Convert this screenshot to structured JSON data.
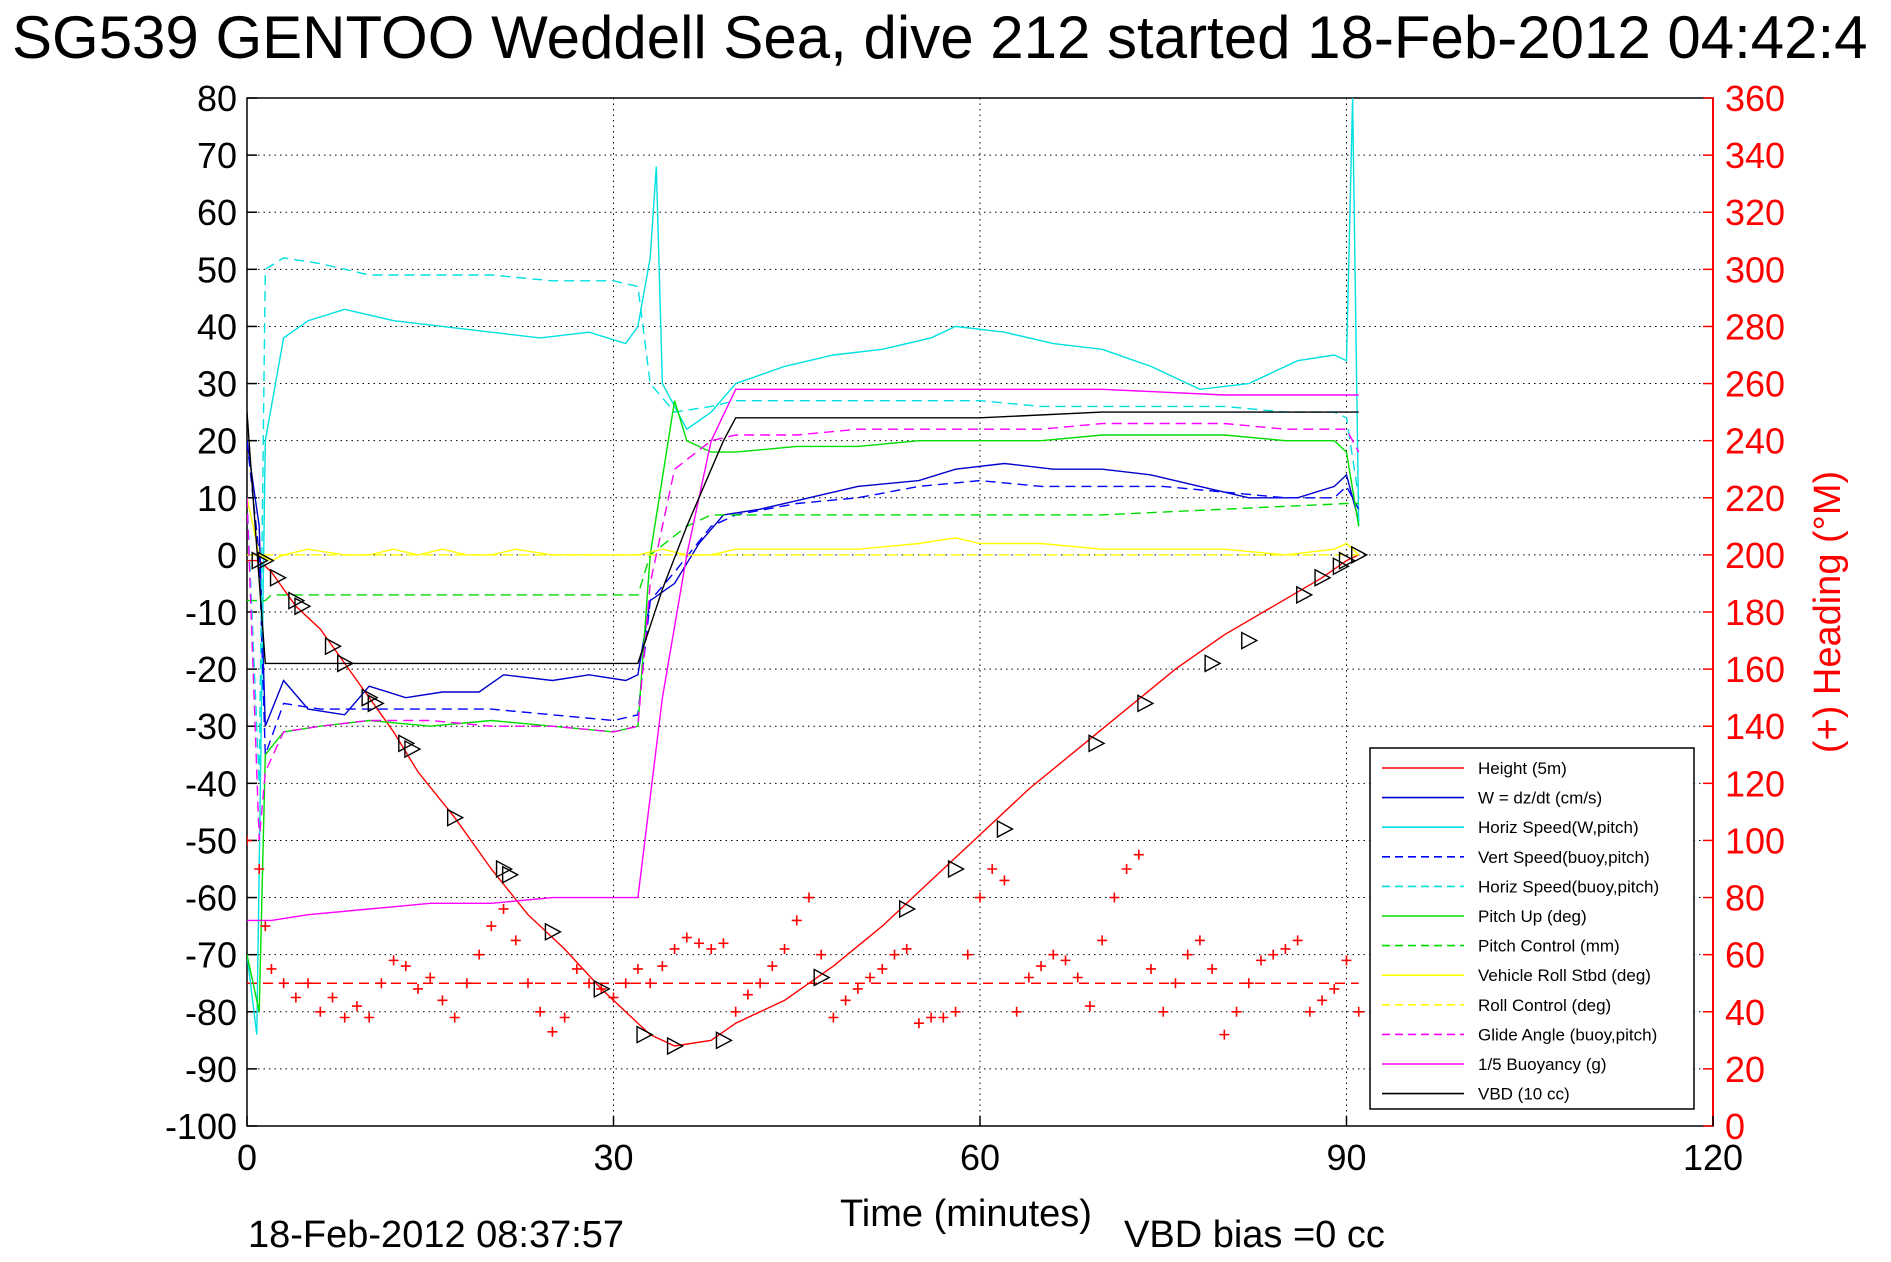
{
  "chart_data": {
    "type": "line",
    "title": "SG539 GENTOO Weddell Sea, dive 212 started 18-Feb-2012 04:42:4",
    "xlabel": "Time (minutes)",
    "ylabel": "",
    "ylabel_right": "(+) Heading (°M)",
    "xlim": [
      0,
      120
    ],
    "ylim": [
      -100,
      80
    ],
    "ylim_right": [
      0,
      360
    ],
    "x_ticks": [
      "0",
      "30",
      "60",
      "90",
      "120"
    ],
    "y_ticks": [
      "80",
      "70",
      "60",
      "50",
      "40",
      "30",
      "20",
      "10",
      "0",
      "-10",
      "-20",
      "-30",
      "-40",
      "-50",
      "-60",
      "-70",
      "-80",
      "-90",
      "-100"
    ],
    "y_ticks_right": [
      "360",
      "340",
      "320",
      "300",
      "280",
      "260",
      "240",
      "220",
      "200",
      "180",
      "160",
      "140",
      "120",
      "100",
      "80",
      "60",
      "40",
      "20",
      "0"
    ],
    "grid": true,
    "legend_position": "bottom-right",
    "footer_left": "18-Feb-2012 08:37:57",
    "footer_right": "VBD bias =0 cc",
    "series": [
      {
        "name": "Height (5m)",
        "color": "#ff0000",
        "style": "solid",
        "x": [
          0,
          1,
          2,
          4,
          6,
          8,
          10,
          12,
          14,
          17,
          20,
          23,
          26,
          29,
          32,
          33,
          35,
          38,
          40,
          44,
          48,
          52,
          56,
          60,
          64,
          68,
          72,
          76,
          80,
          84,
          88,
          90,
          91
        ],
        "y": [
          -1,
          -1,
          -3,
          -9,
          -13,
          -19,
          -25,
          -31,
          -38,
          -46,
          -55,
          -63,
          -69,
          -76,
          -82,
          -84,
          -86,
          -85,
          -82,
          -78,
          -72,
          -65,
          -57,
          -49,
          -41,
          -34,
          -27,
          -20,
          -14,
          -9,
          -4,
          -1,
          0
        ]
      },
      {
        "name": "W = dz/dt (cm/s)",
        "color": "#0000cc",
        "style": "solid",
        "x": [
          0,
          1,
          1.5,
          3,
          5,
          8,
          10,
          13,
          16,
          19,
          21,
          25,
          28,
          31,
          32,
          33,
          35,
          37,
          39,
          42,
          46,
          50,
          55,
          58,
          62,
          66,
          70,
          74,
          78,
          82,
          86,
          89,
          90,
          91
        ],
        "y": [
          20,
          5,
          -30,
          -22,
          -27,
          -28,
          -23,
          -25,
          -24,
          -24,
          -21,
          -22,
          -21,
          -22,
          -21,
          -8,
          -5,
          2,
          7,
          8,
          10,
          12,
          13,
          15,
          16,
          15,
          15,
          14,
          12,
          10,
          10,
          12,
          14,
          6
        ]
      },
      {
        "name": "Horiz Speed(W,pitch)",
        "color": "#00e0e0",
        "style": "solid",
        "x": [
          0,
          0.8,
          1.5,
          3,
          5,
          8,
          12,
          16,
          20,
          24,
          28,
          31,
          32,
          33,
          33.5,
          34,
          36,
          38,
          40,
          44,
          48,
          52,
          56,
          58,
          62,
          66,
          70,
          74,
          78,
          82,
          86,
          89,
          90,
          90.5,
          91
        ],
        "y": [
          -70,
          -84,
          20,
          38,
          41,
          43,
          41,
          40,
          39,
          38,
          39,
          37,
          40,
          52,
          68,
          30,
          22,
          25,
          30,
          33,
          35,
          36,
          38,
          40,
          39,
          37,
          36,
          33,
          29,
          30,
          34,
          35,
          34,
          80,
          5
        ]
      },
      {
        "name": "Vert Speed(buoy,pitch)",
        "color": "#0000ff",
        "style": "dashed",
        "x": [
          0,
          1,
          1.5,
          3,
          6,
          10,
          15,
          20,
          25,
          30,
          32,
          33,
          35,
          38,
          40,
          45,
          50,
          55,
          60,
          65,
          70,
          75,
          80,
          85,
          89,
          90,
          91
        ],
        "y": [
          20,
          0,
          -35,
          -26,
          -27,
          -27,
          -27,
          -27,
          -28,
          -29,
          -28,
          -8,
          -3,
          5,
          7,
          9,
          10,
          12,
          13,
          12,
          12,
          12,
          11,
          10,
          10,
          12,
          8
        ]
      },
      {
        "name": "Horiz Speed(buoy,pitch)",
        "color": "#00e0e0",
        "style": "dashed",
        "x": [
          0,
          1,
          1.5,
          3,
          6,
          10,
          15,
          20,
          25,
          30,
          32,
          33,
          35,
          38,
          40,
          45,
          50,
          55,
          60,
          65,
          70,
          75,
          80,
          85,
          89,
          90,
          91
        ],
        "y": [
          10,
          -40,
          50,
          52,
          51,
          49,
          49,
          49,
          48,
          48,
          47,
          30,
          25,
          26,
          27,
          27,
          27,
          27,
          27,
          26,
          26,
          26,
          26,
          25,
          25,
          24,
          10
        ]
      },
      {
        "name": "Pitch Up (deg)",
        "color": "#00dd00",
        "style": "solid",
        "x": [
          0,
          1,
          1.5,
          3,
          6,
          10,
          15,
          20,
          25,
          30,
          32,
          33,
          35,
          36,
          38,
          40,
          45,
          50,
          55,
          60,
          65,
          70,
          75,
          80,
          85,
          89,
          90,
          91
        ],
        "y": [
          -70,
          -80,
          -35,
          -31,
          -30,
          -29,
          -30,
          -29,
          -30,
          -31,
          -30,
          0,
          27,
          20,
          18,
          18,
          19,
          19,
          20,
          20,
          20,
          21,
          21,
          21,
          20,
          20,
          18,
          5
        ]
      },
      {
        "name": "Pitch Control (mm)",
        "color": "#00dd00",
        "style": "dashed",
        "x": [
          0,
          1.5,
          2,
          5,
          10,
          15,
          20,
          25,
          30,
          32,
          33,
          36,
          38,
          40,
          50,
          60,
          70,
          80,
          90,
          91
        ],
        "y": [
          -8,
          -8,
          -7,
          -7,
          -7,
          -7,
          -7,
          -7,
          -7,
          -7,
          0,
          5,
          7,
          7,
          7,
          7,
          7,
          8,
          9,
          9
        ]
      },
      {
        "name": "Vehicle Roll Stbd (deg)",
        "color": "#ffff00",
        "style": "solid",
        "x": [
          0,
          1,
          2,
          3,
          5,
          8,
          10,
          12,
          14,
          16,
          18,
          20,
          22,
          25,
          28,
          30,
          32,
          34,
          36,
          38,
          40,
          45,
          50,
          55,
          58,
          60,
          65,
          70,
          75,
          80,
          85,
          89,
          90,
          91
        ],
        "y": [
          10,
          0,
          -1,
          0,
          1,
          0,
          0,
          1,
          0,
          1,
          0,
          0,
          1,
          0,
          0,
          0,
          0,
          1,
          0,
          0,
          1,
          1,
          1,
          2,
          3,
          2,
          2,
          1,
          1,
          1,
          0,
          1,
          2,
          0
        ]
      },
      {
        "name": "Roll Control (deg)",
        "color": "#ffff00",
        "style": "dashed",
        "x": [
          0,
          5,
          10,
          15,
          20,
          25,
          30,
          35,
          40,
          50,
          60,
          70,
          80,
          90,
          91
        ],
        "y": [
          0,
          0,
          0,
          0,
          0,
          0,
          0,
          0,
          0,
          0,
          0,
          0,
          0,
          0,
          0
        ]
      },
      {
        "name": "Glide Angle (buoy,pitch)",
        "color": "#ff00ff",
        "style": "dashed",
        "x": [
          0,
          1,
          1.5,
          3,
          6,
          10,
          15,
          20,
          25,
          30,
          32,
          33,
          35,
          38,
          40,
          45,
          50,
          55,
          60,
          65,
          70,
          75,
          80,
          85,
          89,
          90,
          91
        ],
        "y": [
          10,
          -50,
          -38,
          -31,
          -30,
          -29,
          -29,
          -30,
          -30,
          -31,
          -30,
          -5,
          15,
          20,
          21,
          21,
          22,
          22,
          22,
          22,
          23,
          23,
          23,
          22,
          22,
          22,
          18
        ]
      },
      {
        "name": "1/5 Buoyancy (g)",
        "color": "#ff00ff",
        "style": "solid",
        "x": [
          0,
          1,
          2,
          5,
          10,
          15,
          20,
          25,
          30,
          32,
          34,
          36,
          38,
          40,
          50,
          60,
          70,
          80,
          85,
          90,
          91
        ],
        "y": [
          -64,
          -64,
          -64,
          -63,
          -62,
          -61,
          -61,
          -60,
          -60,
          -60,
          -25,
          0,
          20,
          29,
          29,
          29,
          29,
          28,
          28,
          28,
          28
        ]
      },
      {
        "name": "VBD (10 cc)",
        "color": "#000000",
        "style": "solid",
        "x": [
          0,
          0.5,
          1.5,
          2,
          5,
          10,
          15,
          20,
          25,
          30,
          32,
          34,
          36,
          38,
          39,
          40,
          50,
          60,
          70,
          80,
          90,
          91
        ],
        "y": [
          25,
          10,
          -19,
          -19,
          -19,
          -19,
          -19,
          -19,
          -19,
          -19,
          -19,
          -6,
          5,
          15,
          20,
          24,
          24,
          24,
          25,
          25,
          25,
          25
        ]
      },
      {
        "name": "Heading",
        "color": "#ff0000",
        "style": "plus",
        "axis": "right",
        "x": [
          0,
          1,
          1.5,
          2,
          3,
          4,
          5,
          6,
          7,
          8,
          9,
          10,
          11,
          12,
          13,
          14,
          15,
          16,
          17,
          18,
          19,
          20,
          21,
          22,
          23,
          24,
          25,
          26,
          27,
          28,
          29,
          30,
          31,
          32,
          33,
          34,
          35,
          36,
          37,
          38,
          39,
          40,
          41,
          42,
          43,
          44,
          45,
          46,
          47,
          48,
          49,
          50,
          51,
          52,
          53,
          54,
          55,
          56,
          57,
          58,
          59,
          60,
          61,
          62,
          63,
          64,
          65,
          66,
          67,
          68,
          69,
          70,
          71,
          72,
          73,
          74,
          75,
          76,
          77,
          78,
          79,
          80,
          81,
          82,
          83,
          84,
          85,
          86,
          87,
          88,
          89,
          90,
          91
        ],
        "y": [
          100,
          90,
          70,
          55,
          50,
          45,
          50,
          40,
          45,
          38,
          42,
          38,
          50,
          58,
          56,
          48,
          52,
          44,
          38,
          50,
          60,
          70,
          76,
          65,
          50,
          40,
          33,
          38,
          55,
          50,
          48,
          45,
          50,
          55,
          50,
          56,
          62,
          66,
          64,
          62,
          64,
          40,
          46,
          50,
          56,
          62,
          72,
          80,
          60,
          38,
          44,
          48,
          52,
          55,
          60,
          62,
          36,
          38,
          38,
          40,
          60,
          80,
          90,
          86,
          40,
          52,
          56,
          60,
          58,
          52,
          42,
          65,
          80,
          90,
          95,
          55,
          40,
          50,
          60,
          65,
          55,
          32,
          40,
          50,
          58,
          60,
          62,
          65,
          40,
          44,
          48,
          58,
          40
        ]
      }
    ],
    "marker_series": {
      "name": "Height markers",
      "color": "#000000",
      "symbol": "triangle",
      "x": [
        1,
        1.5,
        2.5,
        4,
        4.5,
        7,
        8,
        10,
        10.5,
        13,
        13.5,
        17,
        21,
        21.5,
        25,
        29,
        32.5,
        35,
        39,
        47,
        54,
        58,
        62,
        69.5,
        73.5,
        79,
        82,
        86.5,
        88,
        89.5,
        90,
        91
      ],
      "y": [
        -1,
        -1,
        -4,
        -8,
        -9,
        -16,
        -19,
        -25,
        -26,
        -33,
        -34,
        -46,
        -55,
        -56,
        -66,
        -76,
        -84,
        -86,
        -85,
        -74,
        -62,
        -55,
        -48,
        -33,
        -26,
        -19,
        -15,
        -7,
        -4,
        -2,
        -1,
        0
      ]
    },
    "reference_lines": [
      {
        "color": "#ff0000",
        "style": "dashed",
        "axis": "right",
        "y": 50,
        "x_range": [
          0,
          91
        ]
      }
    ]
  }
}
